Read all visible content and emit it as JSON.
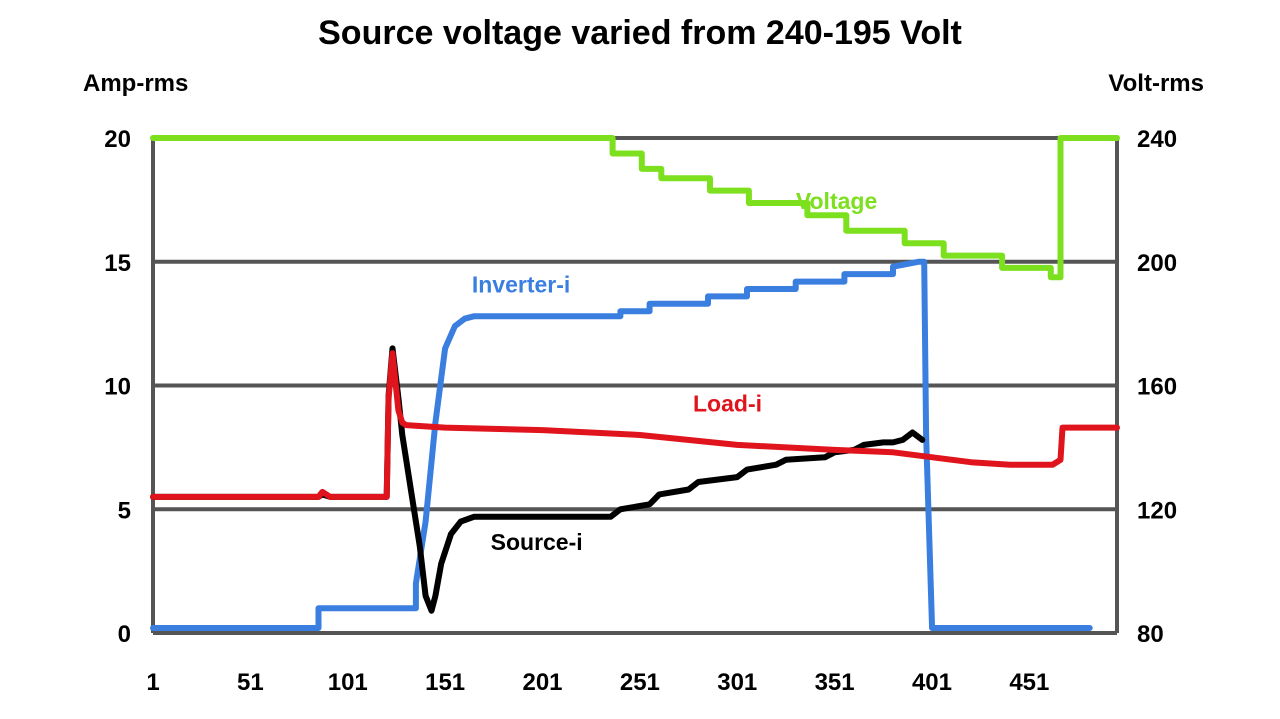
{
  "chart_data": {
    "type": "line",
    "title": "Source voltage varied from 240-195 Volt",
    "ylabel_left": "Amp-rms",
    "ylabel_right": "Volt-rms",
    "xlim": [
      1,
      496
    ],
    "ylim_left": [
      0,
      20
    ],
    "ylim_right": [
      80,
      240
    ],
    "x_ticks": [
      "1",
      "51",
      "101",
      "151",
      "201",
      "251",
      "301",
      "351",
      "401",
      "451"
    ],
    "y_ticks_left": [
      "0",
      "5",
      "10",
      "15",
      "20"
    ],
    "y_ticks_right": [
      "80",
      "120",
      "160",
      "200",
      "240"
    ],
    "grid": "horizontal",
    "colors": {
      "Voltage": "#7de01e",
      "Inverter-i": "#3a7fe0",
      "Load-i": "#e0141c",
      "Source-i": "#000000",
      "grid": "#555555"
    },
    "series": [
      {
        "name": "Voltage",
        "axis": "right",
        "x": [
          1,
          237,
          237,
          252,
          252,
          262,
          262,
          287,
          287,
          307,
          307,
          337,
          337,
          357,
          357,
          387,
          387,
          407,
          407,
          437,
          437,
          462,
          462,
          467,
          467,
          488,
          488,
          496
        ],
        "y": [
          240,
          240,
          235,
          235,
          230,
          230,
          227,
          227,
          223,
          223,
          219,
          219,
          215,
          215,
          210,
          210,
          206,
          206,
          202,
          202,
          198,
          198,
          195,
          195,
          240,
          240,
          240,
          240
        ]
      },
      {
        "name": "Inverter-i",
        "label": "Inverter-i",
        "axis": "left",
        "x": [
          1,
          86,
          86,
          136,
          136,
          141,
          146,
          151,
          156,
          161,
          166,
          181,
          241,
          241,
          256,
          256,
          286,
          286,
          306,
          306,
          331,
          331,
          356,
          356,
          381,
          381,
          394,
          397,
          398,
          401,
          401,
          420,
          482
        ],
        "y": [
          0.2,
          0.2,
          1.0,
          1.0,
          2.0,
          4.5,
          8.5,
          11.5,
          12.4,
          12.7,
          12.8,
          12.8,
          12.8,
          13.0,
          13.0,
          13.3,
          13.3,
          13.6,
          13.6,
          13.9,
          13.9,
          14.2,
          14.2,
          14.5,
          14.5,
          14.8,
          15.0,
          15.0,
          8.0,
          0.3,
          0.2,
          0.2,
          0.2
        ],
        "label_values": [
          12.8
        ]
      },
      {
        "name": "Load-i",
        "label": "Load-i",
        "axis": "left",
        "x": [
          1,
          86,
          88,
          92,
          96,
          121,
          122,
          124,
          127,
          129,
          131,
          151,
          201,
          251,
          301,
          351,
          381,
          421,
          441,
          463,
          467,
          468,
          496
        ],
        "y": [
          5.5,
          5.5,
          5.7,
          5.5,
          5.5,
          5.5,
          9.5,
          11.3,
          9.0,
          8.5,
          8.4,
          8.3,
          8.2,
          8.0,
          7.6,
          7.4,
          7.3,
          6.9,
          6.8,
          6.8,
          7.0,
          8.3,
          8.3
        ],
        "label_values": [
          9.0
        ]
      },
      {
        "name": "Source-i",
        "label": "Source-i",
        "axis": "left",
        "x": [
          1,
          86,
          88,
          92,
          96,
          121,
          122,
          124,
          127,
          129,
          131,
          134,
          138,
          141,
          144,
          146,
          149,
          154,
          159,
          166,
          236,
          241,
          256,
          261,
          276,
          281,
          301,
          306,
          321,
          326,
          346,
          351,
          361,
          366,
          376,
          381,
          386,
          391,
          396
        ],
        "y": [
          5.5,
          5.5,
          5.6,
          5.5,
          5.5,
          5.5,
          9.6,
          11.5,
          9.5,
          8.0,
          7.0,
          5.5,
          3.5,
          1.5,
          0.9,
          1.5,
          2.8,
          4.0,
          4.5,
          4.7,
          4.7,
          5.0,
          5.2,
          5.6,
          5.8,
          6.1,
          6.3,
          6.6,
          6.8,
          7.0,
          7.1,
          7.3,
          7.4,
          7.6,
          7.7,
          7.7,
          7.8,
          8.1,
          7.8
        ]
      }
    ]
  }
}
